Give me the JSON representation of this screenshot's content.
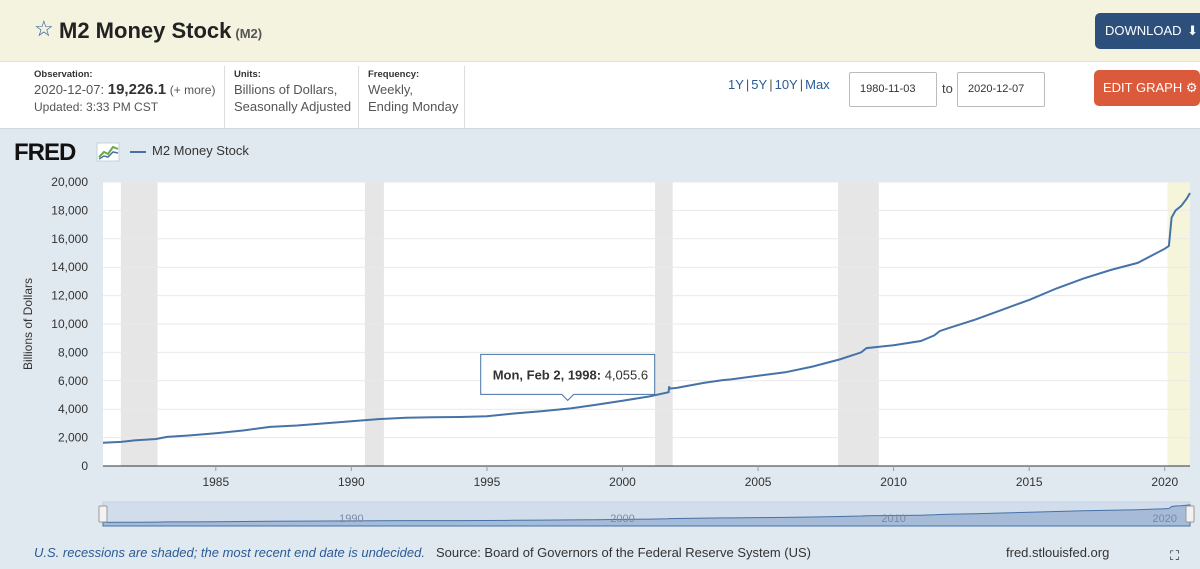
{
  "header": {
    "title": "M2 Money Stock",
    "series_id": "(M2)",
    "download_label": "DOWNLOAD"
  },
  "meta": {
    "observation_label": "Observation:",
    "observation_date": "2020-12-07:",
    "observation_value": "19,226.1",
    "observation_more": "(+ more)",
    "updated": "Updated: 3:33 PM CST",
    "units_label": "Units:",
    "units_line1": "Billions of Dollars,",
    "units_line2": "Seasonally Adjusted",
    "frequency_label": "Frequency:",
    "frequency_line1": "Weekly,",
    "frequency_line2": "Ending Monday"
  },
  "controls": {
    "range_1y": "1Y",
    "range_5y": "5Y",
    "range_10y": "10Y",
    "range_max": "Max",
    "range_sep": "|",
    "start_date": "1980-11-03",
    "to_label": "to",
    "end_date": "2020-12-07",
    "edit_label": "EDIT GRAPH"
  },
  "legend": {
    "logo": "FRED",
    "series": "M2 Money Stock"
  },
  "footer": {
    "note": "U.S. recessions are shaded; the most recent end date is undecided.",
    "source": "Source: Board of Governors of the Federal Reserve System (US)",
    "url": "fred.stlouisfed.org"
  },
  "colors": {
    "line": "#4572a7",
    "recession": "#e6e6e6",
    "highlight": "#f5f5dc",
    "grid": "#e9e9e9"
  },
  "chart_data": {
    "type": "line",
    "title": "M2 Money Stock",
    "xlabel": "",
    "ylabel": "Billions of Dollars",
    "xlim": [
      1980.84,
      2020.93
    ],
    "ylim": [
      0,
      20000
    ],
    "y_ticks": [
      0,
      2000,
      4000,
      6000,
      8000,
      10000,
      12000,
      14000,
      16000,
      18000,
      20000
    ],
    "y_tick_labels": [
      "0",
      "2,000",
      "4,000",
      "6,000",
      "8,000",
      "10,000",
      "12,000",
      "14,000",
      "16,000",
      "18,000",
      "20,000"
    ],
    "x_ticks": [
      1985,
      1990,
      1995,
      2000,
      2005,
      2010,
      2015,
      2020
    ],
    "x_tick_labels": [
      "1985",
      "1990",
      "1995",
      "2000",
      "2005",
      "2010",
      "2015",
      "2020"
    ],
    "navigator_labels": [
      "1990",
      "2000",
      "2010",
      "2020"
    ],
    "recessions": [
      [
        1981.5,
        1982.85
      ],
      [
        1990.5,
        1991.2
      ],
      [
        2001.2,
        2001.85
      ],
      [
        2007.95,
        2009.45
      ],
      [
        2020.1,
        2020.93
      ]
    ],
    "tooltip": {
      "x": 1998.09,
      "y": 4055.6,
      "label": "Mon, Feb 2, 1998:",
      "value": "4,055.6"
    },
    "series": [
      {
        "name": "M2 Money Stock",
        "x": [
          1980.84,
          1981.5,
          1982.0,
          1982.8,
          1983.2,
          1984.0,
          1985.0,
          1986.0,
          1987.0,
          1988.0,
          1989.0,
          1990.0,
          1991.0,
          1992.0,
          1993.0,
          1994.0,
          1995.0,
          1996.0,
          1997.0,
          1998.09,
          1999.0,
          2000.0,
          2001.0,
          2001.7,
          2001.72,
          2001.75,
          2002.0,
          2003.0,
          2003.7,
          2004.0,
          2005.0,
          2006.0,
          2007.0,
          2008.0,
          2008.8,
          2009.0,
          2010.0,
          2011.0,
          2011.5,
          2011.7,
          2012.0,
          2013.0,
          2014.0,
          2015.0,
          2016.0,
          2017.0,
          2018.0,
          2019.0,
          2020.0,
          2020.15,
          2020.25,
          2020.4,
          2020.6,
          2020.8,
          2020.93
        ],
        "y": [
          1640,
          1700,
          1800,
          1900,
          2050,
          2150,
          2300,
          2500,
          2750,
          2850,
          3000,
          3150,
          3300,
          3400,
          3430,
          3450,
          3500,
          3700,
          3850,
          4055.6,
          4300,
          4600,
          4900,
          5200,
          5600,
          5450,
          5500,
          5850,
          6050,
          6100,
          6350,
          6600,
          7000,
          7500,
          8000,
          8300,
          8500,
          8800,
          9200,
          9500,
          9700,
          10300,
          11000,
          11700,
          12500,
          13200,
          13800,
          14300,
          15300,
          15500,
          17500,
          18000,
          18300,
          18800,
          19226.1
        ]
      }
    ]
  }
}
